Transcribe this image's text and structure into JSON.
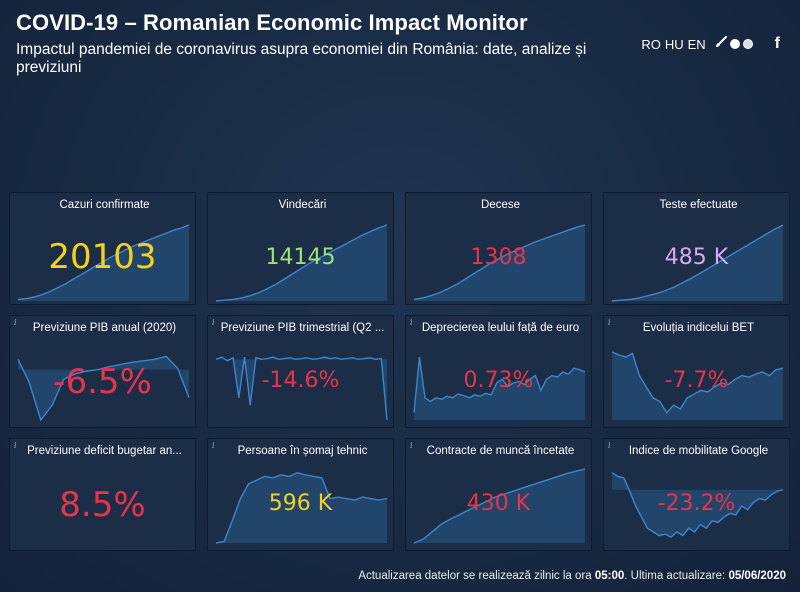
{
  "header": {
    "title": "COVID-19 – Romanian Economic Impact Monitor",
    "subtitle": "Impactul pandemiei de coronavirus asupra economiei din România: date, analize și previziuni"
  },
  "toolbar": {
    "languages": [
      "RO",
      "HU",
      "EN"
    ],
    "icons": [
      "brush-icon",
      "theme-light-icon",
      "theme-dark-icon",
      "facebook-icon"
    ],
    "facebook_glyph": "f"
  },
  "cards": [
    {
      "title": "Cazuri confirmate",
      "value": "20103",
      "color": "#f2d21b",
      "size": "big",
      "trend": [
        0.02,
        0.03,
        0.05,
        0.08,
        0.12,
        0.17,
        0.22,
        0.28,
        0.34,
        0.4,
        0.46,
        0.52,
        0.58,
        0.63,
        0.68,
        0.73,
        0.77,
        0.81,
        0.85,
        0.89,
        0.93,
        0.96,
        1.0
      ]
    },
    {
      "title": "Vindecări",
      "value": "14145",
      "color": "#9fe07a",
      "size": "mid",
      "trend": [
        0.0,
        0.01,
        0.02,
        0.04,
        0.07,
        0.11,
        0.16,
        0.22,
        0.29,
        0.36,
        0.43,
        0.5,
        0.56,
        0.62,
        0.68,
        0.74,
        0.8,
        0.86,
        0.91,
        0.96,
        1.0
      ]
    },
    {
      "title": "Decese",
      "value": "1308",
      "color": "#e8344a",
      "size": "mid",
      "trend": [
        0.02,
        0.04,
        0.07,
        0.11,
        0.16,
        0.22,
        0.29,
        0.36,
        0.43,
        0.5,
        0.56,
        0.62,
        0.67,
        0.72,
        0.77,
        0.81,
        0.85,
        0.89,
        0.93,
        0.97,
        1.0
      ]
    },
    {
      "title": "Teste efectuate",
      "value": "485 K",
      "color": "#d9a8f2",
      "size": "mid",
      "trend": [
        0.0,
        0.01,
        0.02,
        0.04,
        0.07,
        0.1,
        0.14,
        0.19,
        0.25,
        0.31,
        0.38,
        0.45,
        0.52,
        0.59,
        0.66,
        0.73,
        0.8,
        0.87,
        0.94,
        1.0
      ]
    },
    {
      "title": "Previziune PIB anual (2020)",
      "value": "-6.5%",
      "color": "#e8344a",
      "size": "big",
      "trend": [
        0.82,
        0.5,
        0.0,
        0.2,
        0.55,
        0.62,
        0.66,
        0.68,
        0.72,
        0.75,
        0.78,
        0.8,
        0.82,
        0.86,
        0.7,
        0.3
      ]
    },
    {
      "title": "Previziune PIB trimestrial (Q2 ...",
      "value": "-14.6%",
      "color": "#e8344a",
      "size": "mid",
      "trend": [
        0.82,
        0.85,
        0.8,
        0.84,
        0.3,
        0.85,
        0.2,
        0.84,
        0.82,
        0.83,
        0.85,
        0.82,
        0.83,
        0.84,
        0.82,
        0.83,
        0.84,
        0.82,
        0.83,
        0.85,
        0.83,
        0.84,
        0.82,
        0.83,
        0.84,
        0.82,
        0.83,
        0.84,
        0.82,
        0.83,
        0.0
      ]
    },
    {
      "title": "Deprecierea leului față de euro",
      "value": "0.73%",
      "color": "#e8344a",
      "size": "mid",
      "trend": [
        0.1,
        0.85,
        0.3,
        0.25,
        0.3,
        0.28,
        0.32,
        0.3,
        0.35,
        0.33,
        0.3,
        0.34,
        0.32,
        0.36,
        0.34,
        0.5,
        0.55,
        0.45,
        0.5,
        0.52,
        0.48,
        0.55,
        0.6,
        0.4,
        0.55,
        0.6,
        0.58,
        0.65,
        0.62,
        0.7,
        0.68,
        0.65
      ]
    },
    {
      "title": "Evoluția indicelui BET",
      "value": "-7.7%",
      "color": "#e8344a",
      "size": "mid",
      "trend": [
        0.92,
        0.88,
        0.85,
        0.9,
        0.6,
        0.45,
        0.3,
        0.25,
        0.1,
        0.2,
        0.15,
        0.3,
        0.35,
        0.4,
        0.38,
        0.45,
        0.5,
        0.48,
        0.55,
        0.6,
        0.58,
        0.62,
        0.65,
        0.6,
        0.68,
        0.7
      ]
    },
    {
      "title": "Previziune deficit bugetar an...",
      "value": "8.5%",
      "color": "#e8344a",
      "size": "big",
      "trend": []
    },
    {
      "title": "Persoane în șomaj tehnic",
      "value": "596 K",
      "color": "#f2d21b",
      "size": "mid",
      "trend": [
        0.0,
        0.02,
        0.3,
        0.6,
        0.8,
        0.85,
        0.9,
        0.88,
        0.92,
        0.9,
        0.95,
        0.92,
        0.9,
        0.88,
        0.6,
        0.62,
        0.6,
        0.58,
        0.62,
        0.6,
        0.58,
        0.6
      ]
    },
    {
      "title": "Contracte de muncă încetate",
      "value": "430 K",
      "color": "#e8344a",
      "size": "mid",
      "trend": [
        0.0,
        0.05,
        0.15,
        0.25,
        0.32,
        0.38,
        0.44,
        0.5,
        0.56,
        0.62,
        0.66,
        0.7,
        0.74,
        0.78,
        0.82,
        0.86,
        0.9,
        0.94,
        0.97,
        1.0
      ]
    },
    {
      "title": "Indice de mobilitate Google",
      "value": "-23.2%",
      "color": "#e8344a",
      "size": "mid",
      "trend": [
        0.95,
        0.9,
        0.88,
        0.7,
        0.5,
        0.35,
        0.2,
        0.15,
        0.1,
        0.12,
        0.08,
        0.15,
        0.1,
        0.2,
        0.15,
        0.25,
        0.2,
        0.3,
        0.28,
        0.35,
        0.4,
        0.38,
        0.5,
        0.45,
        0.55,
        0.6,
        0.58,
        0.65,
        0.7,
        0.72
      ]
    }
  ],
  "footer": {
    "prefix": "Actualizarea datelor se realizează zilnic la ora ",
    "time": "05:00",
    "middle": ". Ultima actualizare: ",
    "date": "05/06/2020"
  },
  "colors": {
    "background": "#182a42",
    "card": "#1b2d47",
    "spark_line": "#3f86c9",
    "spark_fill": "#234a72"
  }
}
